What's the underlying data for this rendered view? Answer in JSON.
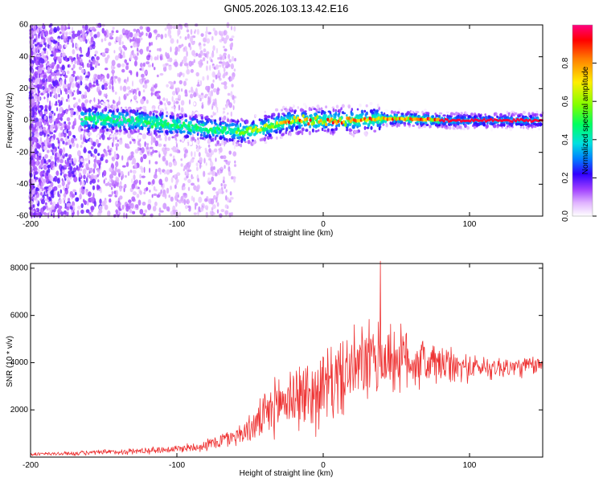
{
  "title": "GN05.2026.103.13.42.E16",
  "chart_data": [
    {
      "type": "heatmap",
      "xlabel": "Height of straight line (km)",
      "ylabel": "Frequency (Hz)",
      "xlim": [
        -200,
        150
      ],
      "ylim": [
        -60,
        60
      ],
      "xticks": [
        -200,
        -100,
        0,
        100
      ],
      "yticks": [
        -60,
        -40,
        -20,
        0,
        20,
        40,
        60
      ],
      "ridge_center": [
        [
          -200,
          0
        ],
        [
          -160,
          1
        ],
        [
          -130,
          0
        ],
        [
          -110,
          -2
        ],
        [
          -90,
          -4
        ],
        [
          -70,
          -6
        ],
        [
          -55,
          -7
        ],
        [
          -45,
          -6
        ],
        [
          -35,
          -3
        ],
        [
          -20,
          0
        ],
        [
          0,
          0
        ],
        [
          20,
          0
        ],
        [
          40,
          1
        ],
        [
          60,
          1
        ],
        [
          80,
          0
        ],
        [
          100,
          0
        ],
        [
          150,
          0
        ]
      ],
      "colorbar": {
        "label": "Normalized spectral amplitude",
        "range": [
          0,
          1
        ],
        "ticks": [
          "0.0",
          "0.2",
          "0.4",
          "0.6",
          "0.8"
        ]
      }
    },
    {
      "type": "line",
      "xlabel": "Height of straight line (km)",
      "ylabel": "SNR (10 * v/v)",
      "xlim": [
        -200,
        150
      ],
      "ylim": [
        0,
        8200
      ],
      "xticks": [
        -200,
        -100,
        0,
        100
      ],
      "yticks": [
        2000,
        4000,
        6000,
        8000
      ],
      "line_color": "#ee3333",
      "series": [
        {
          "name": "SNR",
          "x": [
            -200,
            -175,
            -150,
            -125,
            -100,
            -90,
            -80,
            -70,
            -60,
            -50,
            -40,
            -30,
            -20,
            -10,
            0,
            10,
            20,
            30,
            40,
            50,
            60,
            70,
            80,
            90,
            100,
            110,
            120,
            130,
            140,
            150
          ],
          "mean": [
            120,
            150,
            200,
            260,
            350,
            420,
            500,
            700,
            900,
            1200,
            1700,
            2300,
            2600,
            2600,
            2900,
            3300,
            3700,
            4000,
            4100,
            4200,
            4100,
            4000,
            3900,
            3800,
            3800,
            3800,
            3800,
            3800,
            3850,
            3900
          ],
          "spread": [
            100,
            110,
            140,
            170,
            200,
            250,
            300,
            450,
            500,
            700,
            1200,
            1600,
            1800,
            1900,
            2000,
            2000,
            2000,
            2100,
            2000,
            1800,
            1600,
            1300,
            1100,
            900,
            700,
            600,
            600,
            600,
            500,
            500
          ],
          "peak": {
            "x": 39,
            "y": 8300
          }
        }
      ]
    }
  ]
}
